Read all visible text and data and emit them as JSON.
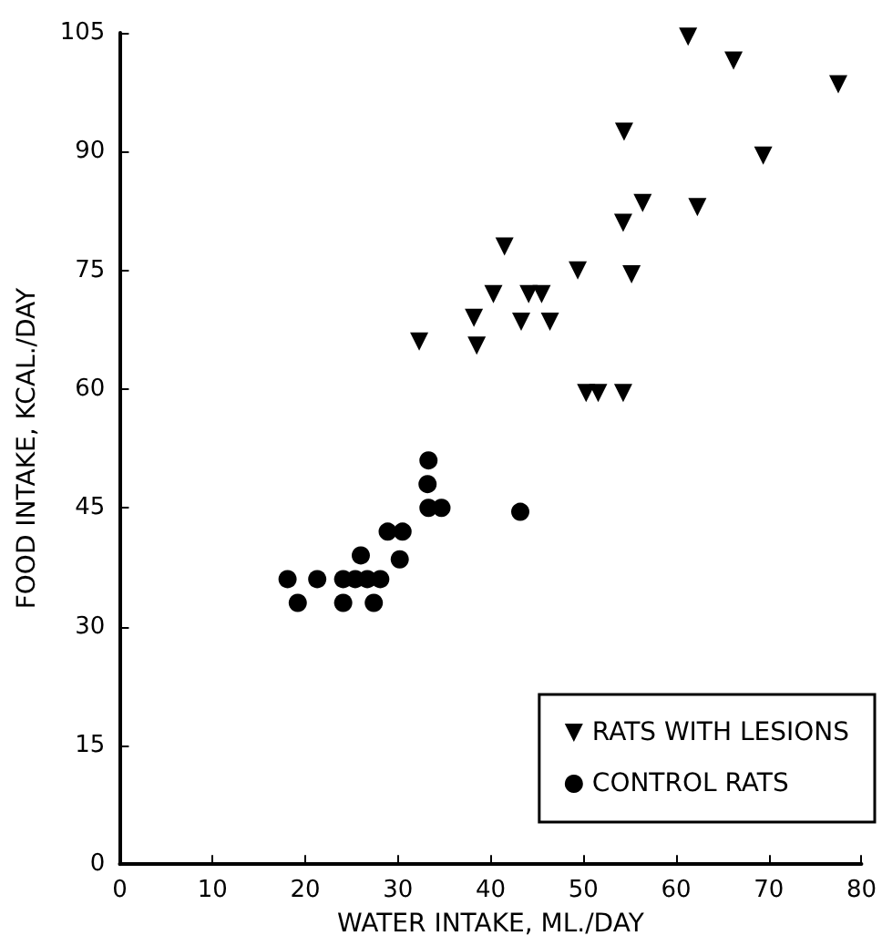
{
  "chart_data": {
    "type": "scatter",
    "xlabel": "WATER INTAKE, ML./DAY",
    "ylabel": "FOOD INTAKE, KCAL./DAY",
    "xlim": [
      0,
      80
    ],
    "xticks": [
      0,
      10,
      20,
      30,
      40,
      50,
      60,
      70,
      80
    ],
    "ylim": [
      0,
      105
    ],
    "yticks": [
      0,
      15,
      30,
      45,
      60,
      75,
      90,
      105
    ],
    "grid": false,
    "legend": "bottom right",
    "series": [
      {
        "name": "RATS WITH LESIONS",
        "color": "#000000",
        "marker": "triangle",
        "x": [
          61.3,
          66.2,
          77.5,
          54.4,
          69.4,
          56.4,
          62.3,
          54.3,
          41.5,
          49.4,
          55.2,
          40.3,
          44.1,
          45.5,
          38.2,
          43.3,
          46.4,
          32.3,
          38.5,
          50.3,
          51.6,
          54.3
        ],
        "values": [
          104.5,
          101.5,
          98.5,
          92.5,
          89.5,
          83.5,
          83,
          81,
          78,
          75,
          74.5,
          72,
          72,
          72,
          69,
          68.5,
          68.5,
          66,
          65.5,
          59.5,
          59.5,
          59.5
        ]
      },
      {
        "name": "CONTROL RATS",
        "color": "#000000",
        "marker": "circle",
        "x": [
          33.3,
          33.2,
          33.3,
          34.7,
          43.2,
          28.9,
          30.5,
          26.0,
          30.2,
          18.1,
          21.3,
          24.1,
          25.4,
          26.7,
          28.1,
          19.2,
          24.1,
          27.4
        ],
        "values": [
          51,
          48,
          45,
          45,
          44.5,
          42,
          42,
          39,
          38.5,
          36,
          36,
          36,
          36,
          36,
          36,
          33,
          33,
          33
        ]
      }
    ]
  }
}
